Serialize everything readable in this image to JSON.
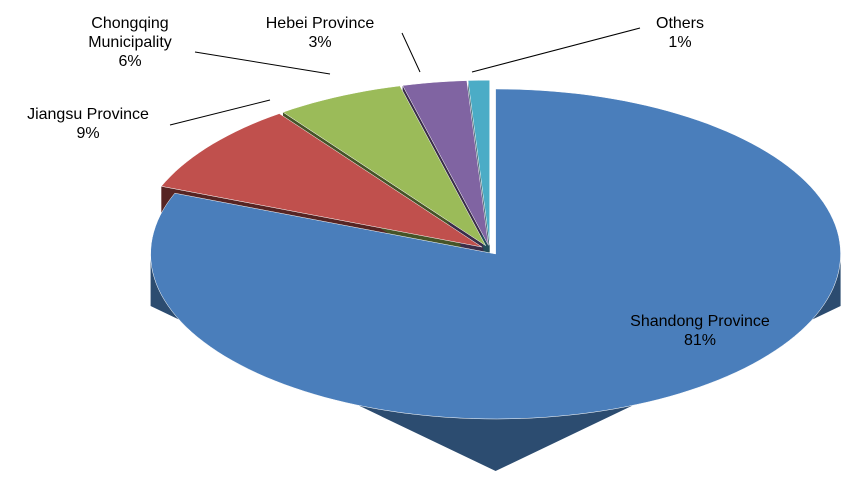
{
  "chart_data": {
    "type": "pie",
    "pie_3d": true,
    "categories": [
      "Shandong Province",
      "Jiangsu Province",
      "Chongqing Municipality",
      "Hebei Province",
      "Others"
    ],
    "values": [
      81,
      9,
      6,
      3,
      1
    ],
    "value_labels": [
      "81%",
      "9%",
      "6%",
      "3%",
      "1%"
    ],
    "colors": [
      "#4a7ebb",
      "#c0504d",
      "#9bbb59",
      "#8064a2",
      "#4bacc6"
    ]
  }
}
